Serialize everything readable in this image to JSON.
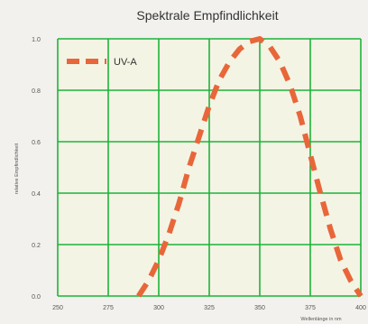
{
  "chart_data": {
    "type": "line",
    "title": "Spektrale Empfindlichkeit",
    "xlabel": "Wellenlänge in nm",
    "ylabel": "relative Empfindlichkeit",
    "xlim": [
      250,
      400
    ],
    "ylim": [
      0,
      1.0
    ],
    "x_ticks": [
      "250",
      "275",
      "300",
      "325",
      "350",
      "375",
      "400"
    ],
    "y_ticks": [
      "0.0",
      "0.2",
      "0.4",
      "0.6",
      "0.8",
      "1.0"
    ],
    "grid": true,
    "legend_position": "top-left",
    "series": [
      {
        "name": "UV-A",
        "color": "#e8663a",
        "line_style": "dashed",
        "x": [
          290,
          295,
          300,
          305,
          310,
          315,
          320,
          325,
          330,
          335,
          340,
          345,
          350,
          355,
          360,
          365,
          370,
          375,
          380,
          385,
          390,
          395,
          400
        ],
        "y": [
          0.0,
          0.06,
          0.14,
          0.24,
          0.36,
          0.5,
          0.62,
          0.74,
          0.84,
          0.91,
          0.96,
          0.99,
          1.0,
          0.97,
          0.91,
          0.82,
          0.7,
          0.55,
          0.4,
          0.26,
          0.14,
          0.06,
          0.0
        ]
      }
    ]
  }
}
